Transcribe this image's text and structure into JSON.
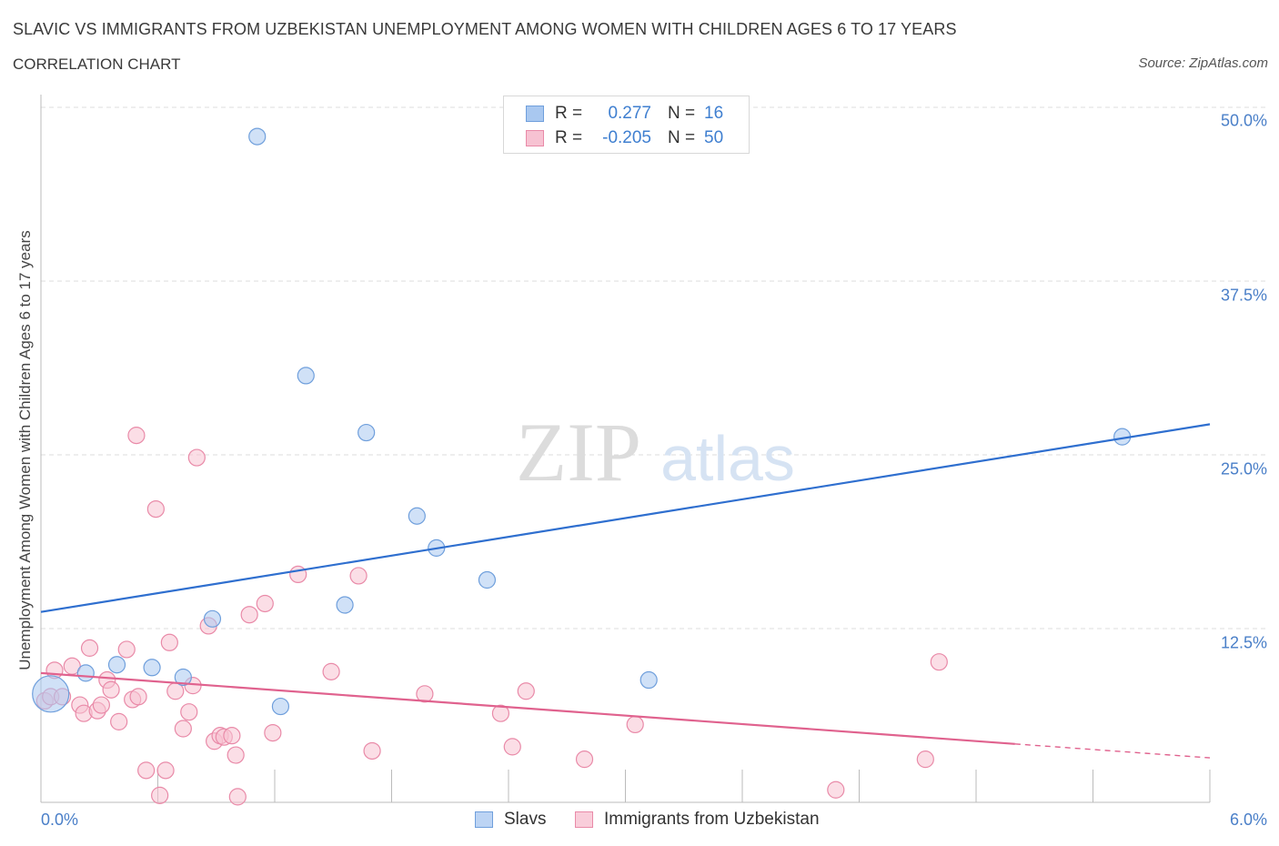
{
  "header": {
    "title": "SLAVIC VS IMMIGRANTS FROM UZBEKISTAN UNEMPLOYMENT AMONG WOMEN WITH CHILDREN AGES 6 TO 17 YEARS",
    "subtitle": "CORRELATION CHART",
    "source": "Source: ZipAtlas.com"
  },
  "watermark": {
    "zip": "ZIP",
    "atlas": "atlas"
  },
  "stats_legend": {
    "rows": [
      {
        "r_label": "R =",
        "r_value": "0.277",
        "n_label": "N =",
        "n_value": "16",
        "color": "#a9c8f0",
        "border": "#6f9fdc"
      },
      {
        "r_label": "R =",
        "r_value": "-0.205",
        "n_label": "N =",
        "n_value": "50",
        "color": "#f7c2d2",
        "border": "#e98aa8"
      }
    ]
  },
  "chart_data": {
    "type": "scatter",
    "xlabel": "",
    "ylabel": "Unemployment Among Women with Children Ages 6 to 17 years",
    "xlim": [
      0,
      6
    ],
    "ylim": [
      0,
      50
    ],
    "x_tick_labels": [
      "0.0%",
      "6.0%"
    ],
    "y_ticks": [
      12.5,
      25.0,
      37.5,
      50.0
    ],
    "y_tick_labels": [
      "12.5%",
      "25.0%",
      "37.5%",
      "50.0%"
    ],
    "grid": "horizontal dashed",
    "legend_position": "bottom-center",
    "series": [
      {
        "name": "Slavs",
        "color": "#a9c8f0",
        "edge": "#6f9fdc",
        "line_color": "#2f6fcf",
        "trend": {
          "x": [
            0.0,
            6.0
          ],
          "y": [
            13.7,
            27.2
          ]
        },
        "points": [
          [
            0.05,
            7.8
          ],
          [
            0.23,
            9.3
          ],
          [
            0.39,
            9.9
          ],
          [
            0.57,
            9.7
          ],
          [
            0.73,
            9.0
          ],
          [
            0.88,
            13.2
          ],
          [
            1.11,
            47.9
          ],
          [
            1.23,
            6.9
          ],
          [
            1.36,
            30.7
          ],
          [
            1.56,
            14.2
          ],
          [
            1.67,
            26.6
          ],
          [
            1.93,
            20.6
          ],
          [
            2.03,
            18.3
          ],
          [
            2.29,
            16.0
          ],
          [
            3.12,
            8.8
          ],
          [
            5.55,
            26.3
          ]
        ],
        "point_sizes": [
          20,
          9,
          9,
          9,
          9,
          9,
          9,
          9,
          9,
          9,
          9,
          9,
          9,
          9,
          9,
          9
        ]
      },
      {
        "name": "Immigrants from Uzbekistan",
        "color": "#f7c2d2",
        "edge": "#e98aa8",
        "line_color": "#e0628e",
        "trend": {
          "x": [
            0.0,
            5.0
          ],
          "y": [
            9.3,
            4.2
          ],
          "dashed_to": {
            "x": 6.0,
            "y": 3.2
          }
        },
        "points": [
          [
            0.02,
            7.3
          ],
          [
            0.05,
            7.6
          ],
          [
            0.07,
            9.5
          ],
          [
            0.11,
            7.6
          ],
          [
            0.16,
            9.8
          ],
          [
            0.2,
            7.0
          ],
          [
            0.22,
            6.4
          ],
          [
            0.25,
            11.1
          ],
          [
            0.29,
            6.6
          ],
          [
            0.31,
            7.0
          ],
          [
            0.34,
            8.8
          ],
          [
            0.36,
            8.1
          ],
          [
            0.4,
            5.8
          ],
          [
            0.44,
            11.0
          ],
          [
            0.47,
            7.4
          ],
          [
            0.49,
            26.4
          ],
          [
            0.5,
            7.6
          ],
          [
            0.54,
            2.3
          ],
          [
            0.59,
            21.1
          ],
          [
            0.61,
            0.5
          ],
          [
            0.64,
            2.3
          ],
          [
            0.66,
            11.5
          ],
          [
            0.69,
            8.0
          ],
          [
            0.73,
            5.3
          ],
          [
            0.76,
            6.5
          ],
          [
            0.78,
            8.4
          ],
          [
            0.8,
            24.8
          ],
          [
            0.86,
            12.7
          ],
          [
            0.89,
            4.4
          ],
          [
            0.92,
            4.8
          ],
          [
            0.94,
            4.7
          ],
          [
            0.98,
            4.8
          ],
          [
            1.0,
            3.4
          ],
          [
            1.01,
            0.4
          ],
          [
            1.07,
            13.5
          ],
          [
            1.15,
            14.3
          ],
          [
            1.19,
            5.0
          ],
          [
            1.32,
            16.4
          ],
          [
            1.49,
            9.4
          ],
          [
            1.63,
            16.3
          ],
          [
            1.7,
            3.7
          ],
          [
            1.97,
            7.8
          ],
          [
            2.36,
            6.4
          ],
          [
            2.42,
            4.0
          ],
          [
            2.49,
            8.0
          ],
          [
            2.79,
            3.1
          ],
          [
            3.05,
            5.6
          ],
          [
            4.08,
            0.9
          ],
          [
            4.54,
            3.1
          ],
          [
            4.61,
            10.1
          ]
        ]
      }
    ]
  },
  "bottom_legend": [
    {
      "label": "Slavs",
      "color": "#bcd4f4",
      "border": "#6f9fdc"
    },
    {
      "label": "Immigrants from Uzbekistan",
      "color": "#f9cdda",
      "border": "#e98aa8"
    }
  ]
}
